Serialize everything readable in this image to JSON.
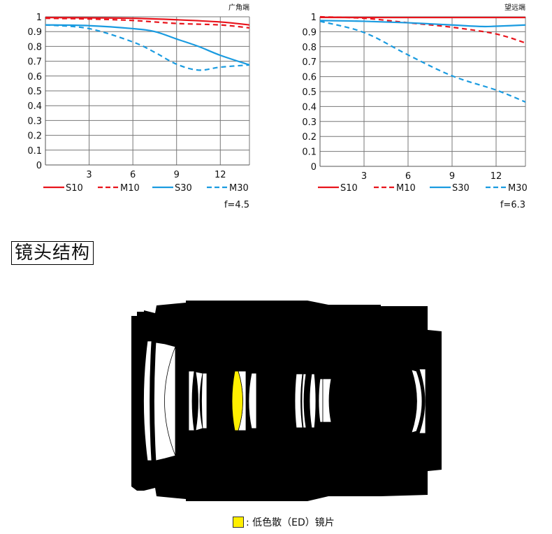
{
  "chart_data": [
    {
      "type": "line",
      "title": "广角端",
      "annotation": "f=4.5",
      "x_ticks": [
        "3",
        "6",
        "9",
        "12"
      ],
      "y_ticks": [
        "0",
        "0.1",
        "0.2",
        "0.3",
        "0.4",
        "0.5",
        "0.6",
        "0.7",
        "0.8",
        "0.9",
        "1"
      ],
      "xlim": [
        0,
        14
      ],
      "ylim": [
        0,
        1
      ],
      "grid": true,
      "legend": "bottom",
      "series": [
        {
          "name": "S10",
          "color": "#e8141c",
          "dash": false,
          "x": [
            0,
            3,
            6,
            9,
            12,
            14
          ],
          "y": [
            0.995,
            0.993,
            0.99,
            0.98,
            0.965,
            0.945
          ]
        },
        {
          "name": "M10",
          "color": "#e8141c",
          "dash": true,
          "x": [
            0,
            3,
            6,
            9,
            12,
            14
          ],
          "y": [
            0.99,
            0.985,
            0.975,
            0.955,
            0.945,
            0.925
          ]
        },
        {
          "name": "S30",
          "color": "#1a9be0",
          "dash": false,
          "x": [
            0,
            3,
            6,
            7.5,
            9,
            10.5,
            12,
            14
          ],
          "y": [
            0.945,
            0.94,
            0.92,
            0.9,
            0.85,
            0.8,
            0.74,
            0.675
          ]
        },
        {
          "name": "M30",
          "color": "#1a9be0",
          "dash": true,
          "x": [
            0,
            3,
            6,
            7.5,
            9,
            10.5,
            12,
            14
          ],
          "y": [
            0.945,
            0.92,
            0.83,
            0.76,
            0.68,
            0.64,
            0.66,
            0.675
          ]
        }
      ]
    },
    {
      "type": "line",
      "title": "望远端",
      "annotation": "f=6.3",
      "x_ticks": [
        "3",
        "6",
        "9",
        "12"
      ],
      "y_ticks": [
        "0",
        "0.1",
        "0.2",
        "0.3",
        "0.4",
        "0.5",
        "0.6",
        "0.7",
        "0.8",
        "0.9",
        "1"
      ],
      "xlim": [
        0,
        14
      ],
      "ylim": [
        0,
        1
      ],
      "grid": true,
      "legend": "bottom",
      "series": [
        {
          "name": "S10",
          "color": "#e8141c",
          "dash": false,
          "x": [
            0,
            3,
            6,
            9,
            12,
            14
          ],
          "y": [
            0.996,
            0.995,
            0.995,
            0.995,
            0.995,
            0.995
          ]
        },
        {
          "name": "M10",
          "color": "#e8141c",
          "dash": true,
          "x": [
            0,
            3,
            6,
            9,
            12,
            14
          ],
          "y": [
            1.0,
            0.99,
            0.96,
            0.93,
            0.885,
            0.825
          ]
        },
        {
          "name": "S30",
          "color": "#1a9be0",
          "dash": false,
          "x": [
            0,
            3,
            6,
            9,
            11,
            12,
            14
          ],
          "y": [
            0.975,
            0.97,
            0.96,
            0.945,
            0.935,
            0.937,
            0.945
          ]
        },
        {
          "name": "M30",
          "color": "#1a9be0",
          "dash": true,
          "x": [
            0,
            3,
            6,
            9,
            12,
            14
          ],
          "y": [
            0.97,
            0.895,
            0.745,
            0.605,
            0.51,
            0.43
          ]
        }
      ]
    }
  ],
  "section_title": "镜头结构",
  "diagram": {
    "ed_color": "#ffef00",
    "legend_label": ": 低色散（ED）镜片"
  }
}
